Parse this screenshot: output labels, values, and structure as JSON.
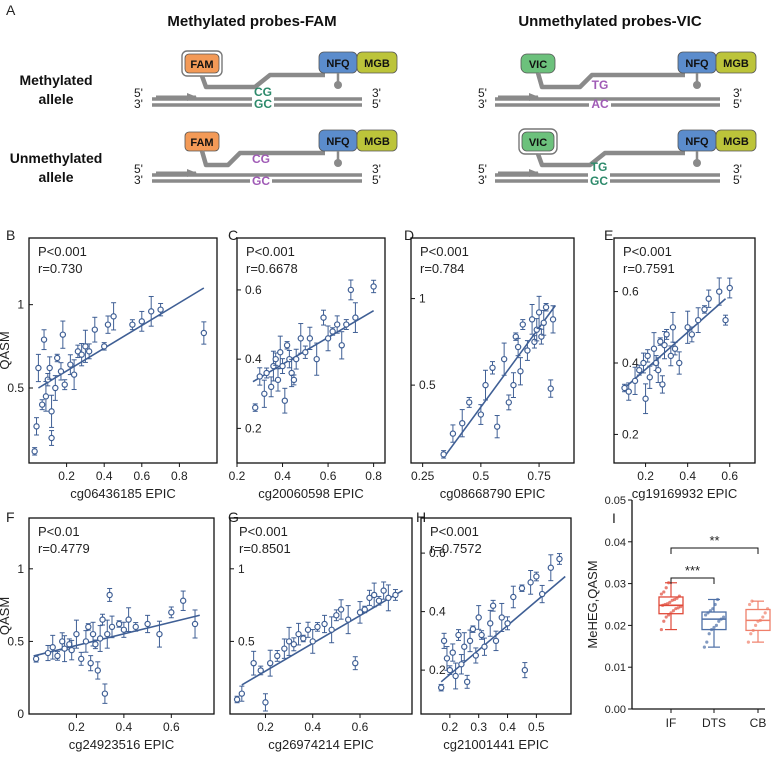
{
  "palette": {
    "accent": "#3f5f95",
    "strand": "#8a8a8a",
    "fam": "#f39a57",
    "vic": "#6cc17c",
    "nfq": "#5b8ccc",
    "mgb": "#bcc43a",
    "base_green": "#2d8a6b",
    "base_purple": "#a05bb6",
    "box_if": "#e04a3a",
    "box_dts": "#4d6fa6",
    "box_cb": "#ef7f6a"
  },
  "schematic": {
    "panel_label": "A",
    "title_left": "Methylated probes-FAM",
    "title_right": "Unmethylated probes-VIC",
    "row1_label_line1": "Methylated",
    "row1_label_line2": "allele",
    "row2_label_line1": "Unmethylated",
    "row2_label_line2": "allele",
    "fam": "FAM",
    "vic": "VIC",
    "nfq": "NFQ",
    "mgb": "MGB",
    "five_prime": "5'",
    "three_prime": "3'",
    "cg": "CG",
    "gc": "GC",
    "tg": "TG",
    "ac": "AC"
  },
  "chart_data": [
    {
      "panel": "B",
      "type": "scatter",
      "stat_p": "P<0.001",
      "stat_r": "r=0.730",
      "ylabel": "QASM",
      "xlabel": "cg06436185 EPIC",
      "xlim": [
        0.0,
        1.0
      ],
      "ylim": [
        0.05,
        1.4
      ],
      "xticks": [
        0.2,
        0.4,
        0.6,
        0.8
      ],
      "yticks": [
        0.5,
        1.0
      ],
      "fit": [
        [
          0.05,
          0.5
        ],
        [
          0.93,
          1.1
        ]
      ],
      "points": [
        [
          0.03,
          0.12
        ],
        [
          0.04,
          0.27
        ],
        [
          0.05,
          0.62
        ],
        [
          0.07,
          0.4
        ],
        [
          0.08,
          0.79
        ],
        [
          0.09,
          0.45
        ],
        [
          0.1,
          0.55
        ],
        [
          0.11,
          0.62
        ],
        [
          0.12,
          0.36
        ],
        [
          0.12,
          0.2
        ],
        [
          0.14,
          0.5
        ],
        [
          0.15,
          0.68
        ],
        [
          0.17,
          0.6
        ],
        [
          0.18,
          0.82
        ],
        [
          0.19,
          0.52
        ],
        [
          0.22,
          0.64
        ],
        [
          0.24,
          0.58
        ],
        [
          0.26,
          0.72
        ],
        [
          0.28,
          0.7
        ],
        [
          0.3,
          0.75
        ],
        [
          0.32,
          0.72
        ],
        [
          0.35,
          0.85
        ],
        [
          0.4,
          0.75
        ],
        [
          0.42,
          0.88
        ],
        [
          0.45,
          0.93
        ],
        [
          0.55,
          0.88
        ],
        [
          0.6,
          0.9
        ],
        [
          0.65,
          0.96
        ],
        [
          0.7,
          0.97
        ],
        [
          0.93,
          0.83
        ]
      ]
    },
    {
      "panel": "C",
      "type": "scatter",
      "stat_p": "P<0.001",
      "stat_r": "r=0.6678",
      "ylabel": "",
      "xlabel": "cg20060598 EPIC",
      "xlim": [
        0.2,
        0.85
      ],
      "ylim": [
        0.1,
        0.75
      ],
      "xticks": [
        0.2,
        0.4,
        0.6,
        0.8
      ],
      "yticks": [
        0.2,
        0.4,
        0.6
      ],
      "fit": [
        [
          0.27,
          0.335
        ],
        [
          0.8,
          0.54
        ]
      ],
      "points": [
        [
          0.28,
          0.26
        ],
        [
          0.3,
          0.35
        ],
        [
          0.32,
          0.3
        ],
        [
          0.33,
          0.36
        ],
        [
          0.35,
          0.32
        ],
        [
          0.36,
          0.38
        ],
        [
          0.37,
          0.4
        ],
        [
          0.38,
          0.34
        ],
        [
          0.39,
          0.42
        ],
        [
          0.4,
          0.38
        ],
        [
          0.41,
          0.28
        ],
        [
          0.42,
          0.44
        ],
        [
          0.43,
          0.4
        ],
        [
          0.44,
          0.36
        ],
        [
          0.45,
          0.34
        ],
        [
          0.46,
          0.4
        ],
        [
          0.48,
          0.46
        ],
        [
          0.5,
          0.42
        ],
        [
          0.52,
          0.46
        ],
        [
          0.55,
          0.4
        ],
        [
          0.58,
          0.52
        ],
        [
          0.6,
          0.46
        ],
        [
          0.62,
          0.48
        ],
        [
          0.64,
          0.5
        ],
        [
          0.66,
          0.44
        ],
        [
          0.68,
          0.5
        ],
        [
          0.7,
          0.6
        ],
        [
          0.72,
          0.52
        ],
        [
          0.8,
          0.61
        ]
      ]
    },
    {
      "panel": "D",
      "type": "scatter",
      "stat_p": "P<0.001",
      "stat_r": "r=0.784",
      "ylabel": "",
      "xlabel": "cg08668790 EPIC",
      "xlim": [
        0.2,
        0.9
      ],
      "ylim": [
        0.05,
        1.35
      ],
      "xticks": [
        0.25,
        0.5,
        0.75
      ],
      "yticks": [
        0.5,
        1.0
      ],
      "fit": [
        [
          0.34,
          0.08
        ],
        [
          0.82,
          0.96
        ]
      ],
      "points": [
        [
          0.34,
          0.1
        ],
        [
          0.38,
          0.22
        ],
        [
          0.42,
          0.28
        ],
        [
          0.45,
          0.4
        ],
        [
          0.5,
          0.33
        ],
        [
          0.52,
          0.5
        ],
        [
          0.55,
          0.6
        ],
        [
          0.57,
          0.26
        ],
        [
          0.6,
          0.65
        ],
        [
          0.62,
          0.4
        ],
        [
          0.64,
          0.5
        ],
        [
          0.65,
          0.78
        ],
        [
          0.66,
          0.72
        ],
        [
          0.67,
          0.58
        ],
        [
          0.68,
          0.85
        ],
        [
          0.7,
          0.7
        ],
        [
          0.72,
          0.88
        ],
        [
          0.73,
          0.75
        ],
        [
          0.74,
          0.82
        ],
        [
          0.75,
          0.92
        ],
        [
          0.76,
          0.78
        ],
        [
          0.77,
          0.86
        ],
        [
          0.78,
          0.95
        ],
        [
          0.8,
          0.48
        ],
        [
          0.81,
          0.88
        ]
      ]
    },
    {
      "panel": "E",
      "type": "scatter",
      "stat_p": "P<0.001",
      "stat_r": "r=0.7591",
      "ylabel": "",
      "xlabel": "cg19169932 EPIC",
      "xlim": [
        0.05,
        0.72
      ],
      "ylim": [
        0.12,
        0.75
      ],
      "xticks": [
        0.2,
        0.4,
        0.6
      ],
      "yticks": [
        0.2,
        0.4,
        0.6
      ],
      "fit": [
        [
          0.1,
          0.33
        ],
        [
          0.58,
          0.58
        ]
      ],
      "points": [
        [
          0.1,
          0.33
        ],
        [
          0.12,
          0.32
        ],
        [
          0.15,
          0.35
        ],
        [
          0.17,
          0.38
        ],
        [
          0.19,
          0.4
        ],
        [
          0.2,
          0.3
        ],
        [
          0.21,
          0.42
        ],
        [
          0.22,
          0.36
        ],
        [
          0.24,
          0.44
        ],
        [
          0.25,
          0.4
        ],
        [
          0.26,
          0.38
        ],
        [
          0.27,
          0.46
        ],
        [
          0.28,
          0.34
        ],
        [
          0.29,
          0.45
        ],
        [
          0.3,
          0.48
        ],
        [
          0.32,
          0.42
        ],
        [
          0.33,
          0.5
        ],
        [
          0.34,
          0.44
        ],
        [
          0.36,
          0.4
        ],
        [
          0.4,
          0.5
        ],
        [
          0.42,
          0.48
        ],
        [
          0.45,
          0.52
        ],
        [
          0.48,
          0.55
        ],
        [
          0.5,
          0.58
        ],
        [
          0.55,
          0.6
        ],
        [
          0.58,
          0.52
        ],
        [
          0.6,
          0.61
        ]
      ]
    },
    {
      "panel": "F",
      "type": "scatter",
      "stat_p": "P<0.01",
      "stat_r": "r=0.4779",
      "ylabel": "QASM",
      "xlabel": "cg24923516 EPIC",
      "xlim": [
        0.0,
        0.78
      ],
      "ylim": [
        0.0,
        1.35
      ],
      "xticks": [
        0.2,
        0.4,
        0.6
      ],
      "yticks": [
        0.0,
        0.5,
        1.0
      ],
      "fit": [
        [
          0.02,
          0.4
        ],
        [
          0.72,
          0.68
        ]
      ],
      "points": [
        [
          0.03,
          0.38
        ],
        [
          0.08,
          0.42
        ],
        [
          0.1,
          0.46
        ],
        [
          0.12,
          0.4
        ],
        [
          0.14,
          0.5
        ],
        [
          0.15,
          0.45
        ],
        [
          0.17,
          0.48
        ],
        [
          0.18,
          0.44
        ],
        [
          0.2,
          0.55
        ],
        [
          0.22,
          0.38
        ],
        [
          0.24,
          0.5
        ],
        [
          0.25,
          0.6
        ],
        [
          0.26,
          0.35
        ],
        [
          0.27,
          0.55
        ],
        [
          0.28,
          0.48
        ],
        [
          0.29,
          0.3
        ],
        [
          0.3,
          0.52
        ],
        [
          0.31,
          0.65
        ],
        [
          0.32,
          0.14
        ],
        [
          0.33,
          0.55
        ],
        [
          0.34,
          0.82
        ],
        [
          0.35,
          0.6
        ],
        [
          0.38,
          0.62
        ],
        [
          0.4,
          0.58
        ],
        [
          0.42,
          0.65
        ],
        [
          0.45,
          0.6
        ],
        [
          0.5,
          0.62
        ],
        [
          0.55,
          0.55
        ],
        [
          0.6,
          0.7
        ],
        [
          0.65,
          0.78
        ],
        [
          0.7,
          0.62
        ]
      ]
    },
    {
      "panel": "G",
      "type": "scatter",
      "stat_p": "P<0.001",
      "stat_r": "r=0.8501",
      "ylabel": "",
      "xlabel": "cg26974214 EPIC",
      "xlim": [
        0.05,
        0.82
      ],
      "ylim": [
        0.0,
        1.35
      ],
      "xticks": [
        0.2,
        0.4,
        0.6
      ],
      "yticks": [
        0.5,
        1.0
      ],
      "fit": [
        [
          0.1,
          0.2
        ],
        [
          0.78,
          0.85
        ]
      ],
      "points": [
        [
          0.08,
          0.1
        ],
        [
          0.1,
          0.14
        ],
        [
          0.15,
          0.35
        ],
        [
          0.18,
          0.3
        ],
        [
          0.2,
          0.08
        ],
        [
          0.22,
          0.35
        ],
        [
          0.25,
          0.4
        ],
        [
          0.28,
          0.45
        ],
        [
          0.3,
          0.5
        ],
        [
          0.32,
          0.48
        ],
        [
          0.34,
          0.55
        ],
        [
          0.36,
          0.52
        ],
        [
          0.38,
          0.58
        ],
        [
          0.4,
          0.5
        ],
        [
          0.42,
          0.6
        ],
        [
          0.45,
          0.62
        ],
        [
          0.48,
          0.58
        ],
        [
          0.5,
          0.68
        ],
        [
          0.52,
          0.72
        ],
        [
          0.55,
          0.65
        ],
        [
          0.58,
          0.35
        ],
        [
          0.6,
          0.7
        ],
        [
          0.62,
          0.72
        ],
        [
          0.64,
          0.8
        ],
        [
          0.66,
          0.82
        ],
        [
          0.68,
          0.78
        ],
        [
          0.7,
          0.85
        ],
        [
          0.72,
          0.8
        ],
        [
          0.75,
          0.82
        ]
      ]
    },
    {
      "panel": "H",
      "type": "scatter",
      "stat_p": "P<0.001",
      "stat_r": "r=0.7572",
      "ylabel": "",
      "xlabel": "cg21001441 EPIC",
      "xlim": [
        0.1,
        0.62
      ],
      "ylim": [
        0.05,
        0.72
      ],
      "xticks": [
        0.2,
        0.3,
        0.4,
        0.5
      ],
      "yticks": [
        0.2,
        0.4,
        0.6
      ],
      "fit": [
        [
          0.17,
          0.16
        ],
        [
          0.6,
          0.52
        ]
      ],
      "points": [
        [
          0.17,
          0.14
        ],
        [
          0.18,
          0.3
        ],
        [
          0.19,
          0.24
        ],
        [
          0.2,
          0.2
        ],
        [
          0.21,
          0.26
        ],
        [
          0.22,
          0.18
        ],
        [
          0.23,
          0.32
        ],
        [
          0.24,
          0.22
        ],
        [
          0.25,
          0.28
        ],
        [
          0.26,
          0.16
        ],
        [
          0.27,
          0.3
        ],
        [
          0.28,
          0.34
        ],
        [
          0.29,
          0.25
        ],
        [
          0.3,
          0.38
        ],
        [
          0.31,
          0.32
        ],
        [
          0.32,
          0.28
        ],
        [
          0.34,
          0.36
        ],
        [
          0.35,
          0.42
        ],
        [
          0.36,
          0.3
        ],
        [
          0.38,
          0.38
        ],
        [
          0.4,
          0.36
        ],
        [
          0.42,
          0.45
        ],
        [
          0.45,
          0.48
        ],
        [
          0.46,
          0.2
        ],
        [
          0.48,
          0.5
        ],
        [
          0.5,
          0.52
        ],
        [
          0.52,
          0.46
        ],
        [
          0.55,
          0.55
        ],
        [
          0.58,
          0.58
        ]
      ]
    },
    {
      "panel": "I",
      "type": "box",
      "ylabel": "MeHEG,QASM",
      "categories": [
        "IF",
        "DTS",
        "CB"
      ],
      "ylim": [
        0.0,
        0.05
      ],
      "yticks": [
        "0.00",
        "0.01",
        "0.02",
        "0.03",
        "0.04",
        "0.05"
      ],
      "boxes": [
        {
          "name": "IF",
          "min": 0.019,
          "q1": 0.0228,
          "median": 0.0248,
          "q3": 0.0268,
          "max": 0.0302
        },
        {
          "name": "DTS",
          "min": 0.0148,
          "q1": 0.019,
          "median": 0.0215,
          "q3": 0.0232,
          "max": 0.0262
        },
        {
          "name": "CB",
          "min": 0.016,
          "q1": 0.0188,
          "median": 0.0212,
          "q3": 0.0238,
          "max": 0.0258
        }
      ],
      "points": {
        "IF": [
          0.019,
          0.021,
          0.022,
          0.0225,
          0.023,
          0.0235,
          0.024,
          0.0242,
          0.0245,
          0.0248,
          0.025,
          0.0252,
          0.0255,
          0.026,
          0.0262,
          0.0265,
          0.027,
          0.0275,
          0.028,
          0.029,
          0.0302
        ],
        "DTS": [
          0.0148,
          0.016,
          0.018,
          0.019,
          0.0195,
          0.02,
          0.021,
          0.0215,
          0.022,
          0.0225,
          0.023,
          0.0235,
          0.024,
          0.025,
          0.0262
        ],
        "CB": [
          0.016,
          0.018,
          0.0188,
          0.02,
          0.021,
          0.0212,
          0.022,
          0.023,
          0.024,
          0.025,
          0.0258
        ]
      },
      "sig_dts": "***",
      "sig_cb": "**"
    }
  ]
}
